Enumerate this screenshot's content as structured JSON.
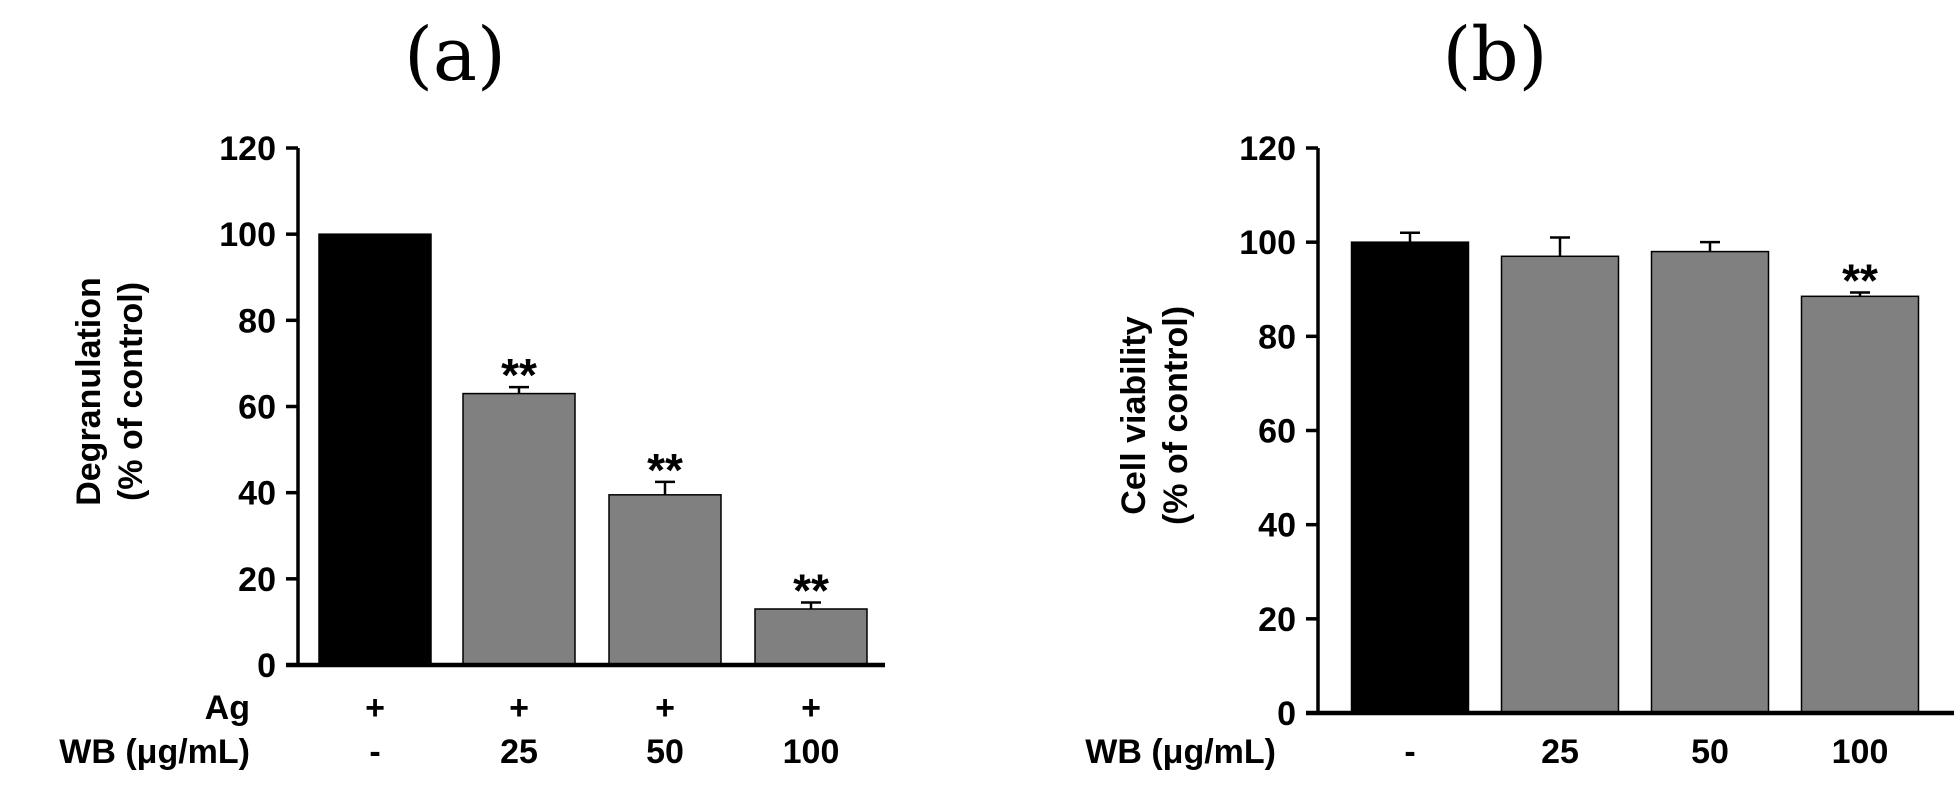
{
  "chart_data": [
    {
      "type": "bar",
      "panel_label": "(a)",
      "ylabel": [
        "Degranulation",
        "(% of control)"
      ],
      "ylim": [
        0,
        120
      ],
      "yticks": [
        0,
        20,
        40,
        60,
        80,
        100,
        120
      ],
      "categories": [
        "-",
        "25",
        "50",
        "100"
      ],
      "values": [
        100,
        63,
        39.5,
        13
      ],
      "errors": [
        0,
        1.5,
        3,
        1.5
      ],
      "significance": [
        "",
        "**",
        "**",
        "**"
      ],
      "bar_colors": [
        "#000000",
        "#808080",
        "#808080",
        "#808080"
      ],
      "row_labels": [
        {
          "label": "Ag",
          "values": [
            "+",
            "+",
            "+",
            "+"
          ]
        },
        {
          "label": "WB (μg/mL)",
          "values": [
            "-",
            "25",
            "50",
            "100"
          ]
        }
      ]
    },
    {
      "type": "bar",
      "panel_label": "(b)",
      "ylabel": [
        "Cell viability",
        "(% of control)"
      ],
      "ylim": [
        0,
        120
      ],
      "yticks": [
        0,
        20,
        40,
        60,
        80,
        100,
        120
      ],
      "categories": [
        "-",
        "25",
        "50",
        "100"
      ],
      "values": [
        100,
        97,
        98,
        88.5
      ],
      "errors": [
        2,
        4,
        2,
        0.8
      ],
      "significance": [
        "",
        "",
        "",
        "**"
      ],
      "bar_colors": [
        "#000000",
        "#808080",
        "#808080",
        "#808080"
      ],
      "row_labels": [
        {
          "label": "WB (μg/mL)",
          "values": [
            "-",
            "25",
            "50",
            "100"
          ]
        }
      ]
    }
  ]
}
